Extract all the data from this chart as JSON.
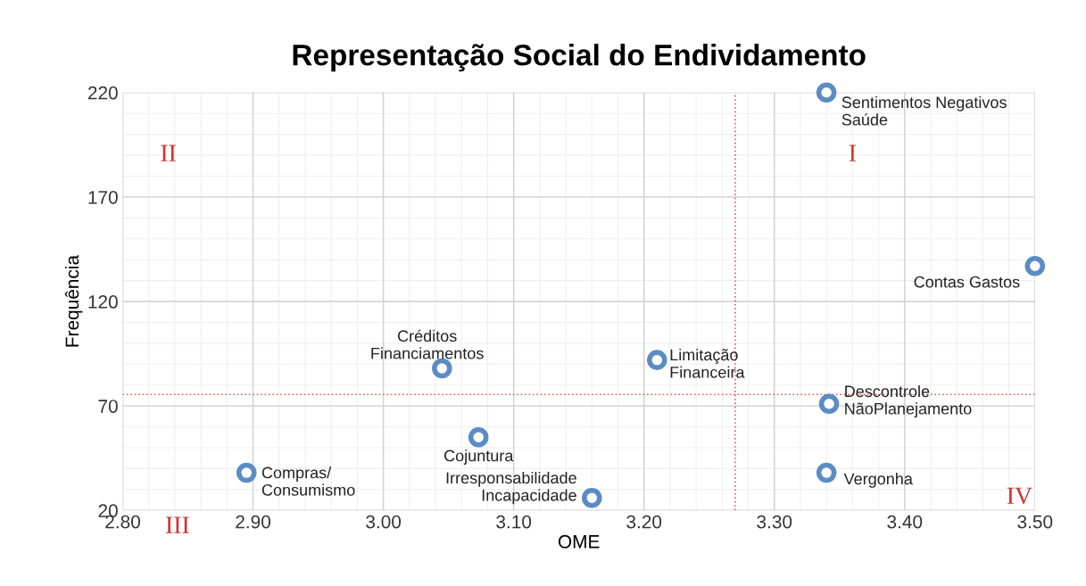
{
  "chart_data": {
    "type": "scatter",
    "title": "Representação Social do Endividamento",
    "xlabel": "OME",
    "ylabel": "Frequência",
    "x": [
      3.34,
      3.5,
      3.21,
      3.045,
      3.073,
      3.342,
      3.34,
      2.895,
      3.16
    ],
    "values": [
      220,
      137,
      92,
      88,
      55,
      71,
      38,
      38,
      26
    ],
    "color": "#5b8cc4",
    "marker": "circle",
    "xlim": [
      2.8,
      3.5
    ],
    "xticks": [
      {
        "value": 2.8,
        "label": "2.80"
      },
      {
        "value": 2.9,
        "label": "2.90"
      },
      {
        "value": 3.0,
        "label": "3.00"
      },
      {
        "value": 3.1,
        "label": "3.10"
      },
      {
        "value": 3.2,
        "label": "3.20"
      },
      {
        "value": 3.3,
        "label": "3.30"
      },
      {
        "value": 3.4,
        "label": "3.40"
      },
      {
        "value": 3.5,
        "label": "3.50"
      }
    ],
    "ylim": [
      20,
      220
    ],
    "yticks": [
      20,
      70,
      120,
      170,
      220
    ],
    "grid": true,
    "ref_lines": [
      {
        "axis": "x",
        "value": 3.27,
        "color": "#e06060",
        "line_style": "dotted"
      },
      {
        "axis": "y",
        "value": 75.5,
        "color": "#e06060",
        "line_style": "dotted"
      }
    ],
    "annotations": [
      {
        "text": "Sentimentos Negativos\nSaúde",
        "x": 3.34,
        "y": 220
      },
      {
        "text": "Contas Gastos",
        "x": 3.5,
        "y": 137
      },
      {
        "text": "Limitação\nFinanceira",
        "x": 3.21,
        "y": 92
      },
      {
        "text": "Créditos\nFinanciamentos",
        "x": 3.045,
        "y": 88
      },
      {
        "text": "Cojuntura",
        "x": 3.073,
        "y": 55
      },
      {
        "text": "Descontrole\nNãoPlanejamento",
        "x": 3.342,
        "y": 71
      },
      {
        "text": "Vergonha",
        "x": 3.34,
        "y": 38
      },
      {
        "text": "Compras/\nConsumismo",
        "x": 2.895,
        "y": 38
      },
      {
        "text": "Irresponsabilidade\nIncapacidade",
        "x": 3.16,
        "y": 26
      },
      "I",
      "II",
      "III",
      "IV"
    ]
  }
}
